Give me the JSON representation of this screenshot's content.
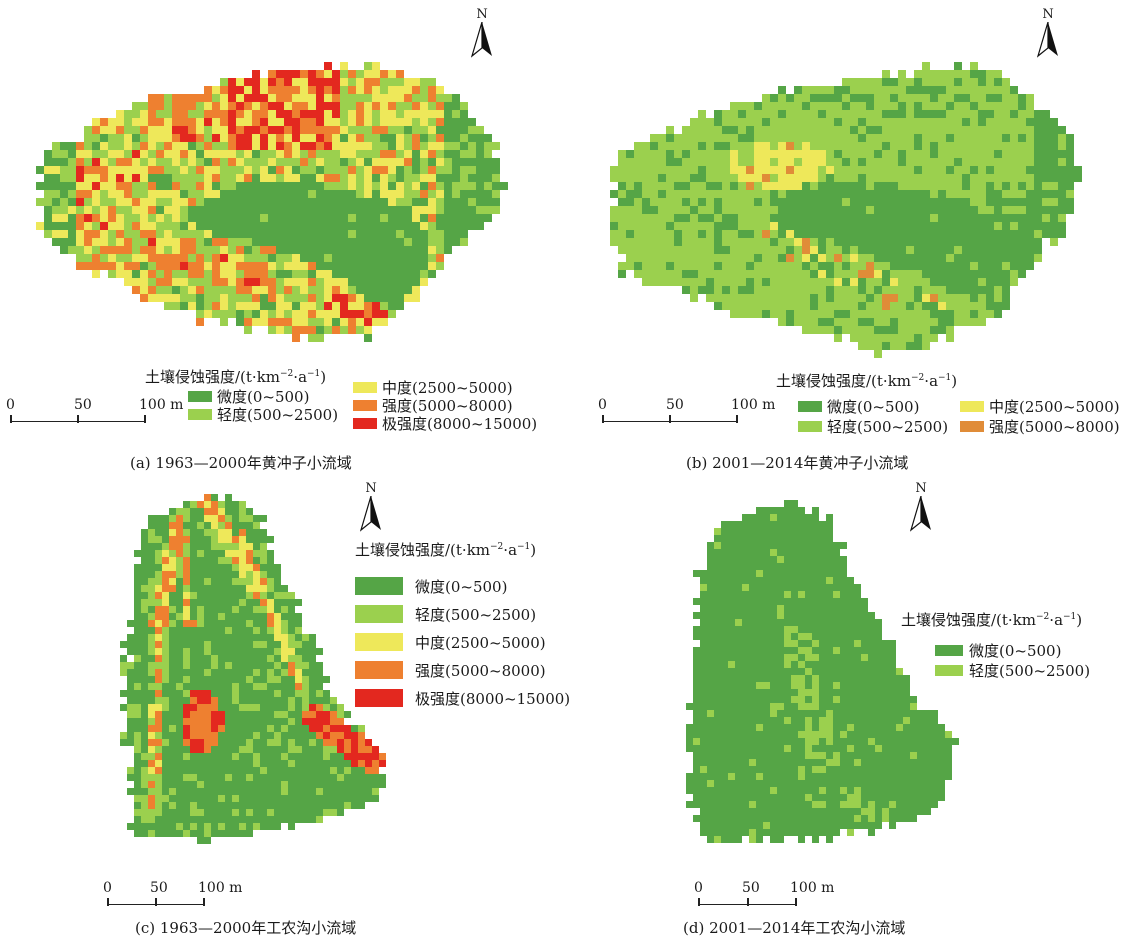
{
  "colors": {
    "slight": "#55a546",
    "light": "#9bd04e",
    "moderate": "#eee85a",
    "strong": "#ee8030",
    "extreme": "#e3281f",
    "strong_b": "#e08c38"
  },
  "legend_title_main": "土壤侵蚀强度/(t·km",
  "legend_title_exp1": "−2",
  "legend_title_mid": "·a",
  "legend_title_exp2": "−1",
  "legend_title_end": ")",
  "classes": {
    "slight": "微度(0~500)",
    "light": "轻度(500~2500)",
    "moderate": "中度(2500~5000)",
    "strong": "强度(5000~8000)",
    "extreme": "极强度(8000~15000)"
  },
  "north_label": "N",
  "scale": {
    "zero": "0",
    "mid": "50",
    "end": "100 m"
  },
  "panels": {
    "a": {
      "caption": "(a) 1963—2000年黄冲子小流域"
    },
    "b": {
      "caption": "(b) 2001—2014年黄冲子小流域"
    },
    "c": {
      "caption": "(c) 1963—2000年工农沟小流域"
    },
    "d": {
      "caption": "(d) 2001—2014年工农沟小流域"
    }
  }
}
